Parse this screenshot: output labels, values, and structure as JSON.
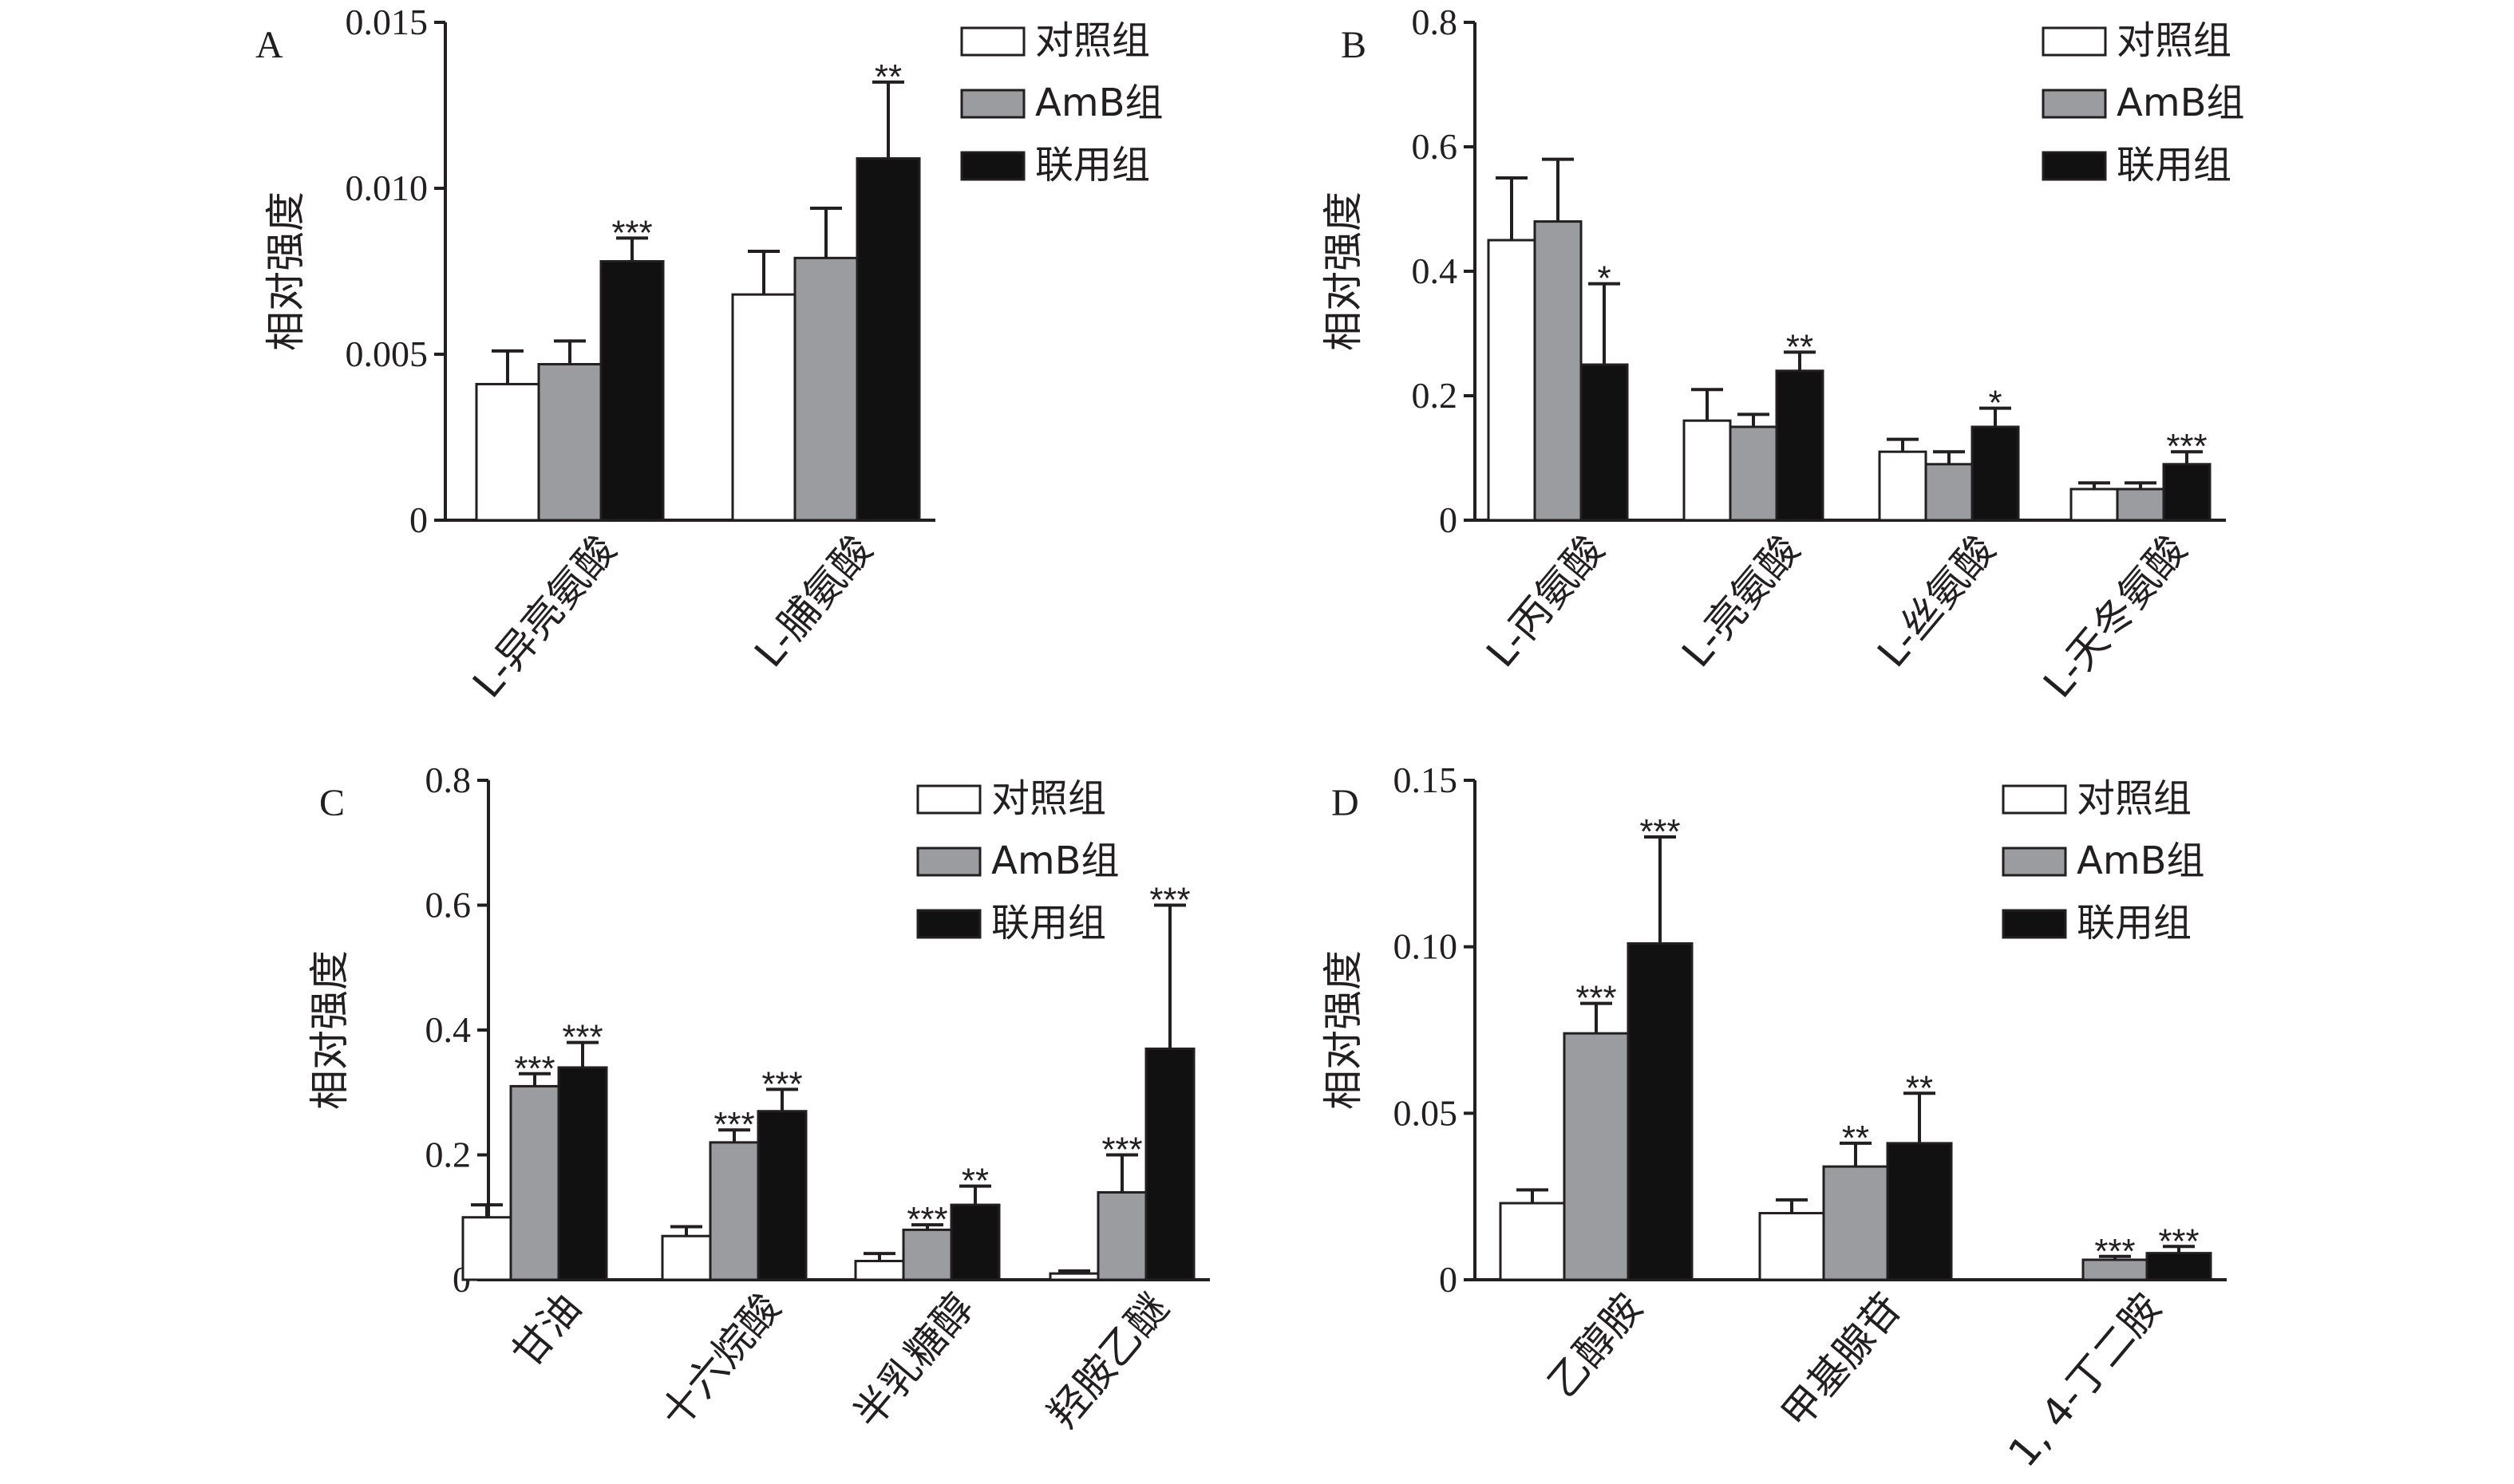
{
  "colors": {
    "control": "#ffffff",
    "amb": "#9b9ca0",
    "combo": "#111111",
    "ink": "#231f20"
  },
  "chart_data": [
    {
      "panel": "A",
      "type": "bar",
      "ylabel": "相对强度",
      "ylim": [
        0,
        0.015
      ],
      "yticks": [
        0,
        0.005,
        0.01,
        0.015
      ],
      "ytick_labels": [
        "0",
        "0.005",
        "0.010",
        "0.015"
      ],
      "categories": [
        "L-异亮氨酸",
        "L-脯氨酸"
      ],
      "legend_placement": "top-right",
      "series": [
        {
          "name": "对照组",
          "values": [
            0.0041,
            0.0068
          ],
          "errors": [
            0.001,
            0.0013
          ],
          "sig": [
            "",
            ""
          ]
        },
        {
          "name": "AmB组",
          "values": [
            0.0047,
            0.0079
          ],
          "errors": [
            0.0007,
            0.0015
          ],
          "sig": [
            "",
            ""
          ]
        },
        {
          "name": "联用组",
          "values": [
            0.0078,
            0.0109
          ],
          "errors": [
            0.0007,
            0.0023
          ],
          "sig": [
            "***",
            "**"
          ]
        }
      ]
    },
    {
      "panel": "B",
      "type": "bar",
      "ylabel": "相对强度",
      "ylim": [
        0,
        0.8
      ],
      "yticks": [
        0,
        0.2,
        0.4,
        0.6,
        0.8
      ],
      "ytick_labels": [
        "0",
        "0.2",
        "0.4",
        "0.6",
        "0.8"
      ],
      "categories": [
        "L-丙氨酸",
        "L-亮氨酸",
        "L-丝氨酸",
        "L-天冬氨酸"
      ],
      "legend_placement": "top-right",
      "series": [
        {
          "name": "对照组",
          "values": [
            0.45,
            0.16,
            0.11,
            0.05
          ],
          "errors": [
            0.1,
            0.05,
            0.02,
            0.01
          ],
          "sig": [
            "",
            "",
            "",
            ""
          ]
        },
        {
          "name": "AmB组",
          "values": [
            0.48,
            0.15,
            0.09,
            0.05
          ],
          "errors": [
            0.1,
            0.02,
            0.02,
            0.01
          ],
          "sig": [
            "",
            "",
            "",
            ""
          ]
        },
        {
          "name": "联用组",
          "values": [
            0.25,
            0.24,
            0.15,
            0.09
          ],
          "errors": [
            0.13,
            0.03,
            0.03,
            0.02
          ],
          "sig": [
            "*",
            "**",
            "*",
            "***"
          ]
        }
      ]
    },
    {
      "panel": "C",
      "type": "bar",
      "ylabel": "相对强度",
      "ylim": [
        0,
        0.8
      ],
      "yticks": [
        0,
        0.2,
        0.4,
        0.6,
        0.8
      ],
      "ytick_labels": [
        "0",
        "0.2",
        "0.4",
        "0.6",
        "0.8"
      ],
      "categories": [
        "甘油",
        "十六烷酸",
        "半乳糖醇",
        "羟胺乙醚"
      ],
      "legend_placement": "top-right",
      "series": [
        {
          "name": "对照组",
          "values": [
            0.1,
            0.07,
            0.03,
            0.01
          ],
          "errors": [
            0.02,
            0.015,
            0.012,
            0.004
          ],
          "sig": [
            "",
            "",
            "",
            ""
          ]
        },
        {
          "name": "AmB组",
          "values": [
            0.31,
            0.22,
            0.08,
            0.14
          ],
          "errors": [
            0.02,
            0.02,
            0.008,
            0.06
          ],
          "sig": [
            "***",
            "***",
            "***",
            "***"
          ]
        },
        {
          "name": "联用组",
          "values": [
            0.34,
            0.27,
            0.12,
            0.37
          ],
          "errors": [
            0.04,
            0.035,
            0.03,
            0.23
          ],
          "sig": [
            "***",
            "***",
            "**",
            "***"
          ]
        }
      ]
    },
    {
      "panel": "D",
      "type": "bar",
      "ylabel": "相对强度",
      "ylim": [
        0,
        0.15
      ],
      "yticks": [
        0,
        0.05,
        0.1,
        0.15
      ],
      "ytick_labels": [
        "0",
        "0.05",
        "0.10",
        "0.15"
      ],
      "categories": [
        "乙醇胺",
        "甲基腺苷",
        "1, 4-丁二胺"
      ],
      "legend_placement": "top-right",
      "series": [
        {
          "name": "对照组",
          "values": [
            0.023,
            0.02,
            0.0
          ],
          "errors": [
            0.004,
            0.004,
            0.0
          ],
          "sig": [
            "",
            "",
            ""
          ]
        },
        {
          "name": "AmB组",
          "values": [
            0.074,
            0.034,
            0.006
          ],
          "errors": [
            0.009,
            0.007,
            0.001
          ],
          "sig": [
            "***",
            "**",
            "***"
          ]
        },
        {
          "name": "联用组",
          "values": [
            0.101,
            0.041,
            0.008
          ],
          "errors": [
            0.032,
            0.015,
            0.002
          ],
          "sig": [
            "***",
            "**",
            "***"
          ]
        }
      ]
    }
  ]
}
